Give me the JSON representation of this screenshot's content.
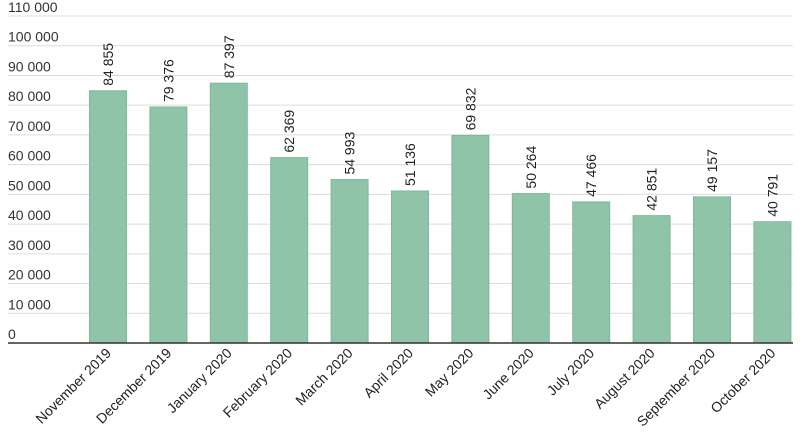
{
  "chart_data": {
    "type": "bar",
    "categories": [
      "November 2019",
      "December 2019",
      "January 2020",
      "February 2020",
      "March 2020",
      "April 2020",
      "May 2020",
      "June 2020",
      "July 2020",
      "August 2020",
      "September 2020",
      "October 2020"
    ],
    "values": [
      84855,
      79376,
      87397,
      62369,
      54993,
      51136,
      69832,
      50264,
      47466,
      42851,
      49157,
      40791
    ],
    "value_labels": [
      "84 855",
      "79 376",
      "87 397",
      "62 369",
      "54 993",
      "51 136",
      "69 832",
      "50 264",
      "47 466",
      "42 851",
      "49 157",
      "40 791"
    ],
    "y_ticks": [
      0,
      10000,
      20000,
      30000,
      40000,
      50000,
      60000,
      70000,
      80000,
      90000,
      100000,
      110000
    ],
    "y_tick_labels": [
      "0",
      "10 000",
      "20 000",
      "30 000",
      "40 000",
      "50 000",
      "60 000",
      "70 000",
      "80 000",
      "90 000",
      "100 000",
      "110 000"
    ],
    "ylim": [
      0,
      110000
    ],
    "title": "",
    "xlabel": "",
    "ylabel": "",
    "grid": true,
    "legend": "none",
    "bar_color": "#8fc4a9",
    "bar_border_color": "#7fb89b"
  }
}
